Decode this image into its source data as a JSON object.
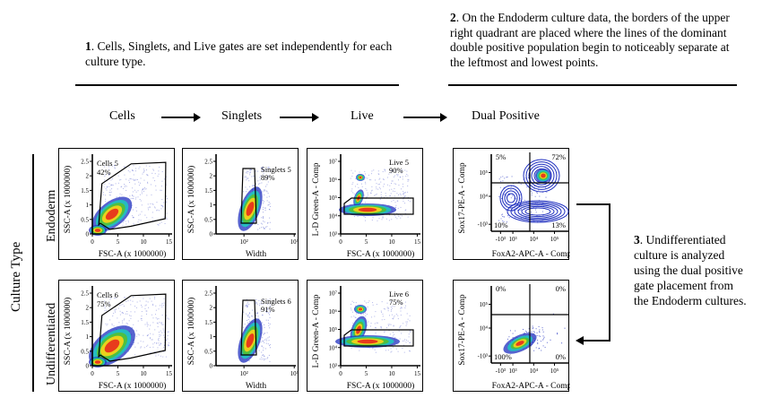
{
  "notes": {
    "note1": {
      "num": "1",
      "text": ". Cells, Singlets, and Live gates are set independently for each culture type."
    },
    "note2": {
      "num": "2",
      "text": ". On the Endoderm culture data, the borders of the upper right quadrant are placed where the lines of the dominant double positive population begin to noticeably separate at the leftmost and lowest points."
    },
    "note3": {
      "num": "3",
      "text": ". Undifferentiated culture is analyzed using the dual positive gate placement from the Endoderm cultures."
    }
  },
  "steps": [
    "Cells",
    "Singlets",
    "Live",
    "Dual Positive"
  ],
  "row_axis_label": "Culture Type",
  "rows": [
    {
      "label": "Endoderm",
      "plots": {
        "cells": {
          "gate": "Cells 5",
          "pct": "42%",
          "xlabel": "FSC-A (x 1000000)",
          "ylabel": "SSC-A (x 1000000)",
          "xticks": [
            "0",
            "5",
            "10",
            "15"
          ],
          "yticks": [
            "0",
            "0.5",
            "1",
            "1.5",
            "2",
            "2.5"
          ]
        },
        "singlets": {
          "gate": "Singlets 5",
          "pct": "89%",
          "xlabel": "Width",
          "ylabel": "SSC-A (x 1000000)",
          "xticks": [
            "10²",
            "10³"
          ],
          "yticks": [
            "0",
            "0.5",
            "1",
            "1.5",
            "2",
            "2.5"
          ]
        },
        "live": {
          "gate": "Live 5",
          "pct": "90%",
          "xlabel": "FSC-A (x 1000000)",
          "ylabel": "L-D Green-A - Comp",
          "xticks": [
            "0",
            "5",
            "10",
            "15"
          ],
          "yticks": [
            "10³",
            "10⁴",
            "10⁵",
            "10⁶",
            "10⁷"
          ]
        },
        "dual": {
          "q_ul": "5%",
          "q_ur": "72%",
          "q_ll": "10%",
          "q_lr": "13%",
          "xlabel": "FoxA2-APC-A - Comp",
          "ylabel": "Sox17-PE-A - Comp",
          "xticks": [
            "-10³",
            "10³",
            "10⁴",
            "10⁵"
          ],
          "yticks": [
            "-10³",
            "10⁴",
            "10⁵"
          ]
        }
      }
    },
    {
      "label": "Undifferentiated",
      "plots": {
        "cells": {
          "gate": "Cells 6",
          "pct": "75%",
          "xlabel": "FSC-A (x 1000000)",
          "ylabel": "SSC-A (x 1000000)",
          "xticks": [
            "0",
            "5",
            "10",
            "15"
          ],
          "yticks": [
            "0",
            "0.5",
            "1",
            "1.5",
            "2",
            "2.5"
          ]
        },
        "singlets": {
          "gate": "Singlets 6",
          "pct": "91%",
          "xlabel": "Width",
          "ylabel": "SSC-A (x 1000000)",
          "xticks": [
            "10²",
            "10³"
          ],
          "yticks": [
            "0",
            "0.5",
            "1",
            "1.5",
            "2",
            "2.5"
          ]
        },
        "live": {
          "gate": "Live 6",
          "pct": "75%",
          "xlabel": "FSC-A (x 1000000)",
          "ylabel": "L-D Green-A - Comp",
          "xticks": [
            "0",
            "5",
            "10",
            "15"
          ],
          "yticks": [
            "10³",
            "10⁴",
            "10⁵",
            "10⁶",
            "10⁷"
          ]
        },
        "dual": {
          "q_ul": "0%",
          "q_ur": "0%",
          "q_ll": "100%",
          "q_lr": "0%",
          "xlabel": "FoxA2-APC-A - Comp",
          "ylabel": "Sox17-PE-A - Comp",
          "xticks": [
            "-10³",
            "10³",
            "10⁴",
            "10⁵"
          ],
          "yticks": [
            "-10³",
            "10⁴",
            "10⁵"
          ]
        }
      }
    }
  ],
  "colors": {
    "density_low": "#1f2fbf",
    "density_mid": "#23c0c0",
    "density_green": "#4fc03a",
    "density_yellow": "#f2d21a",
    "density_high": "#e8331c",
    "contour": "#1f2fbf"
  }
}
